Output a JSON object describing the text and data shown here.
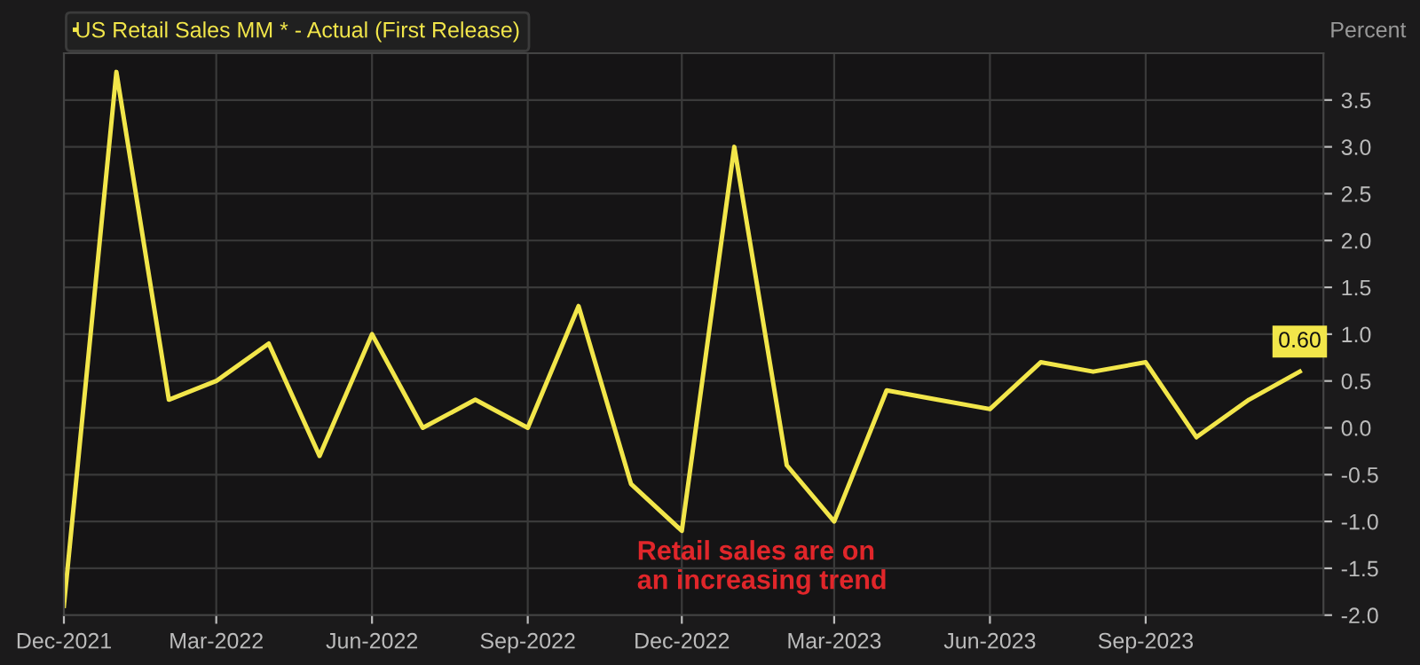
{
  "chart_data": {
    "type": "line",
    "x": [
      "2021-12",
      "2022-01",
      "2022-02",
      "2022-03",
      "2022-04",
      "2022-05",
      "2022-06",
      "2022-07",
      "2022-08",
      "2022-09",
      "2022-10",
      "2022-11",
      "2022-12",
      "2023-01",
      "2023-02",
      "2023-03",
      "2023-04",
      "2023-05",
      "2023-06",
      "2023-07",
      "2023-08",
      "2023-09",
      "2023-10",
      "2023-11",
      "2023-12"
    ],
    "series": [
      {
        "name": "US Retail Sales MM * - Actual (First Release)",
        "color": "#f2e64a",
        "values": [
          -1.9,
          3.8,
          0.3,
          0.5,
          0.9,
          -0.3,
          1.0,
          0.0,
          0.3,
          0.0,
          1.3,
          -0.6,
          -1.1,
          3.0,
          -0.4,
          -1.0,
          0.4,
          0.3,
          0.2,
          0.7,
          0.6,
          0.7,
          -0.1,
          0.3,
          0.6
        ],
        "value_labels": [
          null,
          null,
          null,
          null,
          null,
          null,
          null,
          null,
          null,
          null,
          null,
          null,
          null,
          null,
          null,
          null,
          null,
          null,
          null,
          null,
          null,
          null,
          null,
          null,
          "0.60"
        ]
      }
    ],
    "ylabel": "Percent",
    "xlim": [
      "2021-12-01",
      "2023-12-15"
    ],
    "xticks": [
      {
        "value": "2021-12-01",
        "label": "Dec-2021"
      },
      {
        "value": "2022-03-01",
        "label": "Mar-2022"
      },
      {
        "value": "2022-06-01",
        "label": "Jun-2022"
      },
      {
        "value": "2022-09-01",
        "label": "Sep-2022"
      },
      {
        "value": "2022-12-01",
        "label": "Dec-2022"
      },
      {
        "value": "2023-03-01",
        "label": "Mar-2023"
      },
      {
        "value": "2023-06-01",
        "label": "Jun-2023"
      },
      {
        "value": "2023-09-01",
        "label": "Sep-2023"
      }
    ],
    "ylim": [
      -2.0,
      4.0
    ],
    "yticks": [
      {
        "value": -2.0,
        "label": "-2.0"
      },
      {
        "value": -1.5,
        "label": "-1.5"
      },
      {
        "value": -1.0,
        "label": "-1.0"
      },
      {
        "value": -0.5,
        "label": "-0.5"
      },
      {
        "value": 0.0,
        "label": "0.0"
      },
      {
        "value": 0.5,
        "label": "0.5"
      },
      {
        "value": 1.0,
        "label": "1.0"
      },
      {
        "value": 1.5,
        "label": "1.5"
      },
      {
        "value": 2.0,
        "label": "2.0"
      },
      {
        "value": 2.5,
        "label": "2.5"
      },
      {
        "value": 3.0,
        "label": "3.0"
      },
      {
        "value": 3.5,
        "label": "3.5"
      }
    ],
    "annotations": [
      "Retail sales are on\nan increasing trend"
    ],
    "grid": true,
    "legend": "top left",
    "marker": "none",
    "line_style": "solid"
  }
}
